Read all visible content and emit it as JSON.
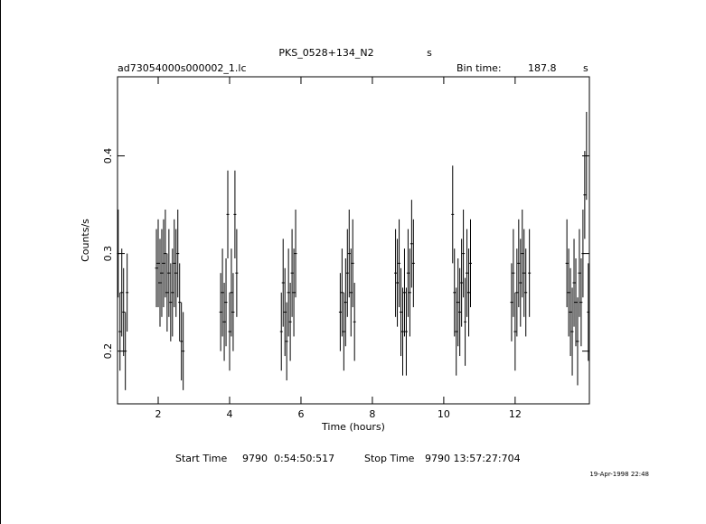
{
  "chart_data": {
    "type": "errorbar",
    "title": "PKS_0528+134_N2",
    "title_unit": "s",
    "file_label": "ad73054000s000002_1.lc",
    "bin_time_label": "Bin time:",
    "bin_time": 187.8,
    "bin_time_unit": "s",
    "xlabel": "Time (hours)",
    "ylabel": "Counts/s",
    "start_label": "Start Time",
    "start_value": "9790  0:54:50:517",
    "stop_label": "Stop Time",
    "stop_value": "9790 13:57:27:704",
    "timestamp": "19-Apr-1998 22:48",
    "xlim": [
      0.86,
      14.08
    ],
    "ylim": [
      0.146,
      0.481
    ],
    "xticks": [
      2,
      4,
      6,
      8,
      10,
      12
    ],
    "yticks": [
      0.2,
      0.3,
      0.4
    ],
    "color": "#000000",
    "x": [
      0.88,
      0.93,
      0.98,
      1.03,
      1.08,
      1.13,
      1.95,
      2.0,
      2.05,
      2.1,
      2.15,
      2.2,
      2.25,
      2.3,
      2.35,
      2.4,
      2.45,
      2.5,
      2.55,
      2.6,
      2.65,
      2.7,
      3.75,
      3.8,
      3.85,
      3.9,
      3.95,
      4.0,
      4.05,
      4.1,
      4.15,
      4.2,
      5.45,
      5.5,
      5.55,
      5.6,
      5.65,
      5.7,
      5.75,
      5.8,
      5.85,
      7.1,
      7.15,
      7.2,
      7.25,
      7.3,
      7.35,
      7.4,
      7.45,
      7.5,
      8.65,
      8.7,
      8.75,
      8.8,
      8.85,
      8.9,
      8.95,
      9.0,
      9.05,
      9.1,
      9.15,
      10.25,
      10.3,
      10.35,
      10.4,
      10.45,
      10.5,
      10.55,
      10.6,
      10.65,
      10.7,
      10.75,
      11.9,
      11.95,
      12.0,
      12.05,
      12.1,
      12.15,
      12.2,
      12.25,
      12.3,
      12.4,
      13.45,
      13.5,
      13.55,
      13.6,
      13.65,
      13.7,
      13.75,
      13.8,
      13.85,
      13.9,
      13.95,
      14.0,
      14.05
    ],
    "values": [
      0.3,
      0.22,
      0.26,
      0.24,
      0.2,
      0.26,
      0.285,
      0.29,
      0.27,
      0.28,
      0.29,
      0.3,
      0.26,
      0.28,
      0.25,
      0.26,
      0.29,
      0.28,
      0.3,
      0.25,
      0.21,
      0.2,
      0.24,
      0.26,
      0.23,
      0.25,
      0.34,
      0.22,
      0.26,
      0.24,
      0.34,
      0.28,
      0.22,
      0.27,
      0.24,
      0.21,
      0.26,
      0.23,
      0.28,
      0.26,
      0.3,
      0.24,
      0.26,
      0.22,
      0.25,
      0.28,
      0.3,
      0.26,
      0.29,
      0.23,
      0.28,
      0.27,
      0.29,
      0.24,
      0.22,
      0.26,
      0.22,
      0.28,
      0.26,
      0.31,
      0.29,
      0.34,
      0.26,
      0.22,
      0.25,
      0.24,
      0.27,
      0.3,
      0.23,
      0.28,
      0.26,
      0.29,
      0.25,
      0.28,
      0.22,
      0.26,
      0.29,
      0.27,
      0.3,
      0.28,
      0.26,
      0.28,
      0.29,
      0.26,
      0.24,
      0.22,
      0.27,
      0.25,
      0.21,
      0.28,
      0.25,
      0.3,
      0.36,
      0.4,
      0.24
    ],
    "errors": [
      0.045,
      0.04,
      0.045,
      0.045,
      0.04,
      0.04,
      0.04,
      0.045,
      0.045,
      0.045,
      0.045,
      0.045,
      0.04,
      0.045,
      0.04,
      0.045,
      0.045,
      0.045,
      0.045,
      0.04,
      0.04,
      0.04,
      0.04,
      0.045,
      0.04,
      0.045,
      0.045,
      0.04,
      0.045,
      0.04,
      0.045,
      0.045,
      0.04,
      0.045,
      0.045,
      0.04,
      0.045,
      0.04,
      0.045,
      0.045,
      0.045,
      0.04,
      0.045,
      0.04,
      0.045,
      0.045,
      0.045,
      0.045,
      0.045,
      0.04,
      0.045,
      0.045,
      0.045,
      0.045,
      0.045,
      0.045,
      0.045,
      0.045,
      0.045,
      0.045,
      0.045,
      0.05,
      0.045,
      0.045,
      0.045,
      0.045,
      0.045,
      0.045,
      0.045,
      0.045,
      0.045,
      0.045,
      0.04,
      0.045,
      0.04,
      0.045,
      0.045,
      0.045,
      0.045,
      0.045,
      0.045,
      0.045,
      0.045,
      0.045,
      0.045,
      0.045,
      0.045,
      0.045,
      0.045,
      0.045,
      0.045,
      0.045,
      0.045,
      0.045,
      0.05
    ]
  }
}
